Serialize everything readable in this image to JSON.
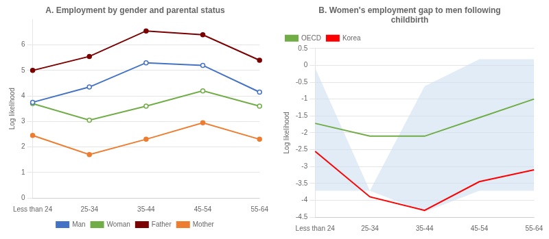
{
  "chart_data": [
    {
      "type": "line",
      "title": "A. Employment by gender and parental status",
      "ylabel": "Log likelihood",
      "categories": [
        "Less than 24",
        "25-34",
        "35-44",
        "45-54",
        "55-64"
      ],
      "series": [
        {
          "name": "Man",
          "color": "#4472C4",
          "marker": "hollow circle",
          "values": [
            3.75,
            4.35,
            5.3,
            5.2,
            4.15
          ]
        },
        {
          "name": "Woman",
          "color": "#70AD47",
          "marker": "hollow circle",
          "values": [
            3.7,
            3.05,
            3.6,
            4.2,
            3.6
          ]
        },
        {
          "name": "Father",
          "color": "#7B0000",
          "marker": "circle",
          "values": [
            5.0,
            5.55,
            6.55,
            6.4,
            5.4
          ]
        },
        {
          "name": "Mother",
          "color": "#ED7D31",
          "marker": "circle",
          "values": [
            2.45,
            1.7,
            2.3,
            2.95,
            2.3
          ]
        }
      ],
      "ylim": [
        0,
        7
      ],
      "yticks": [
        0,
        1,
        2,
        3,
        4,
        5,
        6
      ],
      "grid": true,
      "legend": "bottom"
    },
    {
      "type": "line",
      "title": "B. Women's employment gap to men following\nchildbirth",
      "ylabel": "Log likelihood",
      "categories": [
        "Less than 24",
        "25-34",
        "35-44",
        "45-54",
        "55-64"
      ],
      "series": [
        {
          "name": "OECD",
          "color": "#70AD47",
          "values": [
            -1.72,
            -2.1,
            -2.1,
            -1.55,
            -1.0
          ]
        },
        {
          "name": "Korea",
          "color": "#FF0000",
          "values": [
            -2.55,
            -3.9,
            -4.3,
            -3.45,
            -3.1
          ]
        }
      ],
      "shade": {
        "upper": [
          -0.08,
          -3.72,
          -0.62,
          0.18,
          0.18
        ],
        "lower": [
          -3.72,
          -3.72,
          -4.35,
          -3.72,
          -3.72
        ],
        "color": "#C8DDF0"
      },
      "ylim": [
        -4.5,
        0.5
      ],
      "yticks": [
        0.5,
        0,
        -0.5,
        -1,
        -1.5,
        -2,
        -2.5,
        -3,
        -3.5,
        -4,
        -4.5
      ],
      "grid": true,
      "legend": "upper left"
    }
  ]
}
